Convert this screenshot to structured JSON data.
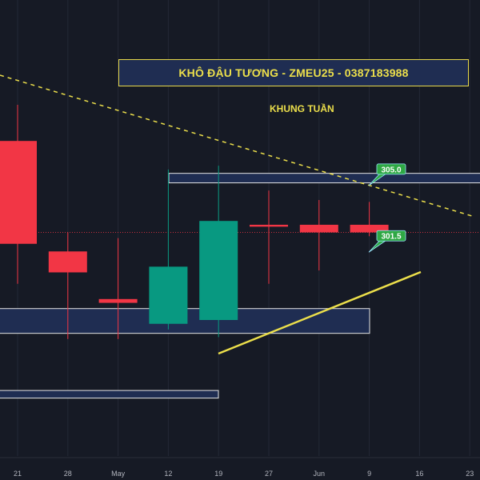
{
  "header": {
    "title": "KHÔ ĐẬU TƯƠNG - ZMEU25 - 0387183988",
    "subtitle": "KHUNG TUẦN"
  },
  "colors": {
    "background": "#161a25",
    "up": "#089981",
    "down": "#f23645",
    "annotation": "#ecdf4b",
    "zone_fill": "#1f2d52",
    "label_green": "#2fa844",
    "price_line": "#f23645",
    "tick_text": "#b2b5be"
  },
  "chart_data": {
    "type": "candlestick",
    "x_tick_labels": [
      "21",
      "28",
      "May",
      "12",
      "19",
      "27",
      "Jun",
      "9",
      "16",
      "23"
    ],
    "candles": [
      {
        "x": "21",
        "open": 306.5,
        "high": 308.4,
        "low": 299.0,
        "close": 301.1
      },
      {
        "x": "28",
        "open": 300.7,
        "high": 301.7,
        "low": 296.1,
        "close": 299.6
      },
      {
        "x": "May",
        "open": 298.2,
        "high": 301.4,
        "low": 296.1,
        "close": 298.0
      },
      {
        "x": "12",
        "open": 296.9,
        "high": 305.0,
        "low": 296.6,
        "close": 299.9
      },
      {
        "x": "19",
        "open": 297.1,
        "high": 305.2,
        "low": 296.2,
        "close": 302.3
      },
      {
        "x": "27",
        "open": 302.1,
        "high": 303.9,
        "low": 299.0,
        "close": 302.0
      },
      {
        "x": "Jun",
        "open": 302.1,
        "high": 303.4,
        "low": 299.7,
        "close": 301.7
      },
      {
        "x": "9",
        "open": 302.1,
        "high": 303.3,
        "low": 301.5,
        "close": 301.7
      }
    ],
    "price_labels": [
      {
        "text": "305.0",
        "value": 305.0
      },
      {
        "text": "301.5",
        "value": 301.5
      }
    ],
    "current_price_line": 301.7,
    "resistance_zone": [
      304.3,
      304.8
    ],
    "support_zone": [
      296.4,
      297.7
    ],
    "lower_zone": [
      293.0,
      293.4
    ],
    "ylim": [
      288.7,
      313.9
    ]
  }
}
